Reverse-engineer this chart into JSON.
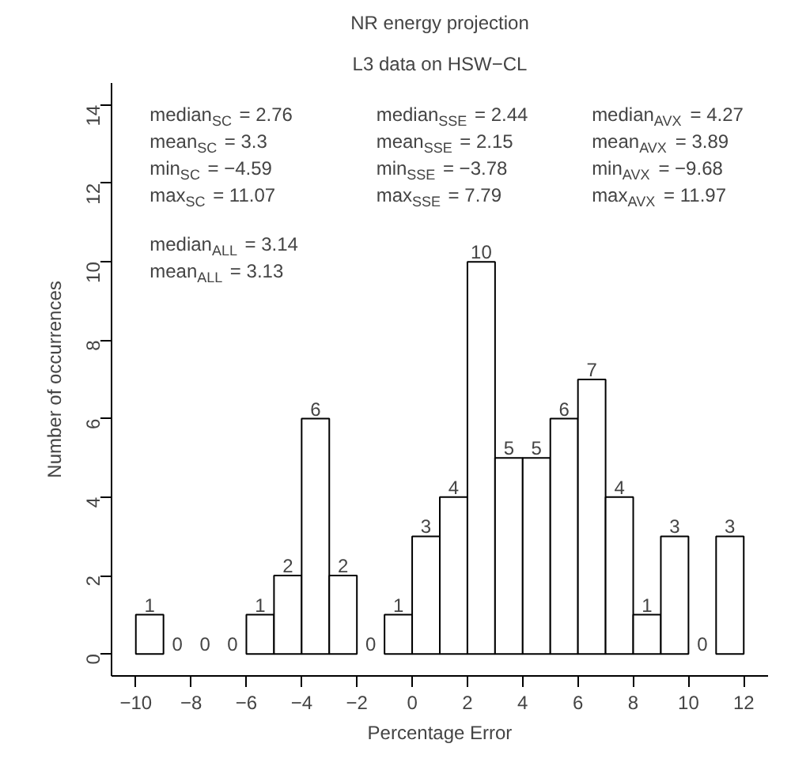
{
  "chart_data": {
    "type": "histogram",
    "title": "NR energy projection",
    "subtitle": "L3 data on HSW−CL",
    "xlabel": "Percentage Error",
    "ylabel": "Number of occurrences",
    "bins": [
      -10,
      -9,
      -8,
      -7,
      -6,
      -5,
      -4,
      -3,
      -2,
      -1,
      0,
      1,
      2,
      3,
      4,
      5,
      6,
      7,
      8,
      9,
      10,
      11,
      12
    ],
    "values": [
      1,
      0,
      0,
      0,
      1,
      2,
      6,
      2,
      0,
      1,
      3,
      4,
      10,
      5,
      5,
      6,
      7,
      4,
      1,
      3,
      0,
      3
    ],
    "color": "#ffffff",
    "data_labels": true,
    "xlim": [
      -10.88,
      12.88
    ],
    "ylim": [
      -0.56,
      14.56
    ],
    "xticks": [
      {
        "value": -10,
        "label": "−10"
      },
      {
        "value": -8,
        "label": "−8"
      },
      {
        "value": -6,
        "label": "−6"
      },
      {
        "value": -4,
        "label": "−4"
      },
      {
        "value": -2,
        "label": "−2"
      },
      0,
      2,
      4,
      6,
      8,
      10,
      12
    ],
    "yticks": [
      0,
      2,
      4,
      6,
      8,
      10,
      12,
      14
    ],
    "grid": false,
    "annotations": [
      "median$_{SC}$ = 2.76\nmean$_{SC}$ = 3.3\nmin$_{SC}$ = −4.59\nmax$_{SC}$ = 11.07",
      "median$_{SSE}$ = 2.44\nmean$_{SSE}$ = 2.15\nmin$_{SSE}$ = −3.78\nmax$_{SSE}$ = 7.79",
      "median$_{AVX}$ = 4.27\nmean$_{AVX}$ = 3.89\nmin$_{AVX}$ = −9.68\nmax$_{AVX}$ = 11.97",
      "median$_{ALL}$ = 3.14\nmean$_{ALL}$ = 3.13"
    ]
  }
}
